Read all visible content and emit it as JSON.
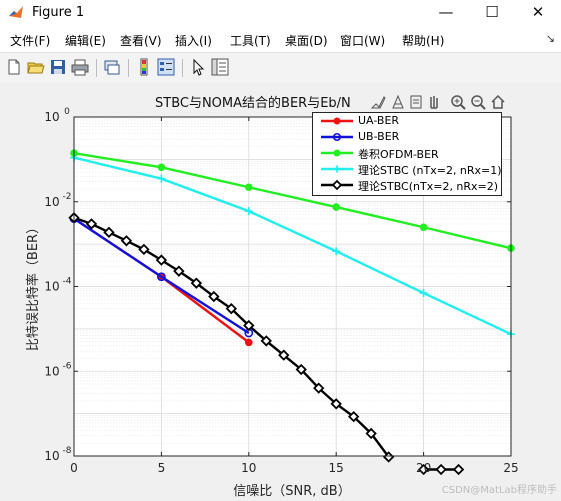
{
  "window": {
    "title": "Figure 1",
    "minimize": "—",
    "maximize": "☐",
    "close": "✕"
  },
  "menu": {
    "items": [
      "文件(F)",
      "编辑(E)",
      "查看(V)",
      "插入(I)",
      "工具(T)",
      "桌面(D)",
      "窗口(W)",
      "帮助(H)"
    ],
    "dock_glyph": "↘"
  },
  "toolbar_icons": [
    "new-figure-icon",
    "open-file-icon",
    "save-icon",
    "print-icon",
    "link-icon",
    "colorbar-icon",
    "legend-icon",
    "pointer-icon",
    "property-inspector-icon"
  ],
  "axes_toolbar_icons": [
    "brush-icon",
    "data-tips-icon",
    "export-icon",
    "pan-icon",
    "zoom-in-icon",
    "zoom-out-icon",
    "home-icon"
  ],
  "watermark": "CSDN@MatLab程序助手",
  "chart_data": {
    "type": "line",
    "title": "STBC与NOMA结合的BER与Eb/N",
    "xlabel": "信噪比（SNR, dB）",
    "ylabel": "比特误比特率（BER）",
    "xlim": [
      0,
      25
    ],
    "ylim": [
      1e-08,
      1
    ],
    "yscale": "log",
    "xticks": [
      "0",
      "5",
      "10",
      "15",
      "20",
      "25"
    ],
    "yticks": [
      {
        "base": "10",
        "exp": "0"
      },
      {
        "base": "10",
        "exp": "-2"
      },
      {
        "base": "10",
        "exp": "-4"
      },
      {
        "base": "10",
        "exp": "-6"
      },
      {
        "base": "10",
        "exp": "-8"
      }
    ],
    "grid": true,
    "legend_position": "top-right",
    "series": [
      {
        "name": "UA-BER",
        "color": "#ee1111",
        "marker": "dot",
        "x": [
          0,
          5,
          10
        ],
        "y": [
          0.004,
          0.00017,
          4.8e-06
        ]
      },
      {
        "name": "UB-BER",
        "color": "#1111dd",
        "marker": "circle",
        "x": [
          0,
          5,
          10
        ],
        "y": [
          0.004,
          0.00017,
          8e-06
        ]
      },
      {
        "name": "卷积OFDM-BER",
        "color": "#22ee22",
        "marker": "dot",
        "x": [
          0,
          5,
          10,
          15,
          20,
          25
        ],
        "y": [
          0.14,
          0.065,
          0.022,
          0.0075,
          0.0025,
          0.0008
        ]
      },
      {
        "name": "理论STBC (nTx=2, nRx=1)",
        "color": "#22eeee",
        "marker": "plus",
        "x": [
          0,
          5,
          10,
          15,
          20,
          25
        ],
        "y": [
          0.11,
          0.035,
          0.006,
          0.00068,
          7e-05,
          7.5e-06
        ]
      },
      {
        "name": "理论STBC(nTx=2, nRx=2)",
        "color": "#000000",
        "marker": "diamond",
        "x": [
          0,
          1,
          2,
          3,
          4,
          5,
          6,
          7,
          8,
          9,
          10,
          11,
          12,
          13,
          14,
          15,
          16,
          17,
          18,
          19,
          20,
          21,
          22
        ],
        "y": [
          0.0042,
          0.003,
          0.0019,
          0.0012,
          0.00075,
          0.00042,
          0.00023,
          0.00012,
          5.8e-05,
          3e-05,
          1.2e-05,
          5.2e-06,
          2.4e-06,
          1.1e-06,
          4e-07,
          1.7e-07,
          8.5e-08,
          3.4e-08,
          9.5e-09,
          null,
          4.8e-09,
          4.8e-09,
          4.8e-09
        ]
      }
    ]
  }
}
